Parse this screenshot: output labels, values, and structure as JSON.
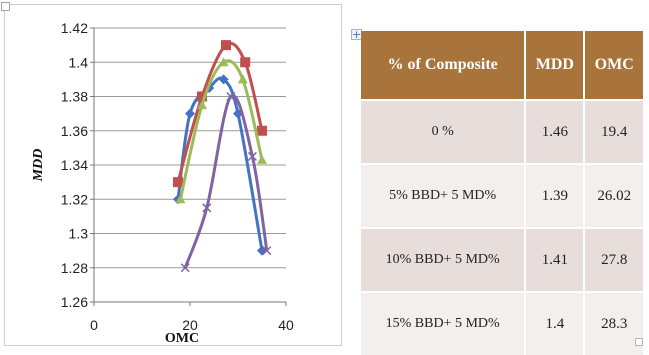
{
  "chart_data": {
    "type": "line",
    "xlabel": "OMC",
    "ylabel": "MDD",
    "xlim": [
      0,
      40
    ],
    "ylim": [
      1.26,
      1.42
    ],
    "x_ticks": [
      "0",
      "20",
      "40"
    ],
    "y_ticks": [
      "1.26",
      "1.28",
      "1.3",
      "1.32",
      "1.34",
      "1.36",
      "1.38",
      "1.4",
      "1.42"
    ],
    "grid": true,
    "legend": "none",
    "series": [
      {
        "color": "#4472c4",
        "marker": "diamond",
        "points": [
          [
            17.5,
            1.32
          ],
          [
            20,
            1.37
          ],
          [
            24,
            1.385
          ],
          [
            27,
            1.39
          ],
          [
            30,
            1.37
          ],
          [
            35,
            1.29
          ]
        ]
      },
      {
        "color": "#c0504d",
        "marker": "square",
        "points": [
          [
            17.5,
            1.33
          ],
          [
            22.5,
            1.38
          ],
          [
            27.5,
            1.41
          ],
          [
            31.5,
            1.4
          ],
          [
            35,
            1.36
          ]
        ]
      },
      {
        "color": "#9bbb59",
        "marker": "triangle",
        "points": [
          [
            18,
            1.32
          ],
          [
            22.5,
            1.375
          ],
          [
            27,
            1.4
          ],
          [
            31,
            1.39
          ],
          [
            35,
            1.343
          ]
        ]
      },
      {
        "color": "#8064a2",
        "marker": "x",
        "points": [
          [
            19,
            1.28
          ],
          [
            23.5,
            1.315
          ],
          [
            28.5,
            1.38
          ],
          [
            33,
            1.345
          ],
          [
            36,
            1.29
          ]
        ]
      }
    ]
  },
  "table": {
    "headers": [
      "% of Composite",
      "MDD",
      "OMC"
    ],
    "rows": [
      [
        "0 %",
        "1.46",
        "19.4"
      ],
      [
        "5% BBD+ 5 MD%",
        "1.39",
        "26.02"
      ],
      [
        "10% BBD+ 5 MD%",
        "1.41",
        "27.8"
      ],
      [
        "15% BBD+ 5 MD%",
        "1.4",
        "28.3"
      ]
    ]
  },
  "controls": {
    "expand_glyph": "+"
  }
}
